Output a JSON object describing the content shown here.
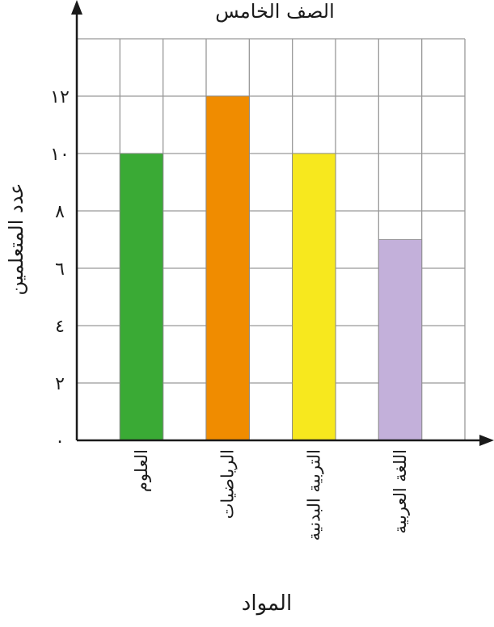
{
  "chart_data": {
    "type": "bar",
    "title": "الصف الخامس",
    "xlabel": "المواد",
    "ylabel": "عدد المتعلمين",
    "categories": [
      "العلوم",
      "الرياضيات",
      "التربية البدنية",
      "اللغة العربية"
    ],
    "values": [
      10,
      12,
      10,
      7
    ],
    "ylim": [
      0,
      14
    ],
    "yticks": [
      0,
      2,
      4,
      6,
      8,
      10,
      12
    ],
    "ytick_labels": [
      "٠",
      "٢",
      "٤",
      "٦",
      "٨",
      "١٠",
      "١٢"
    ],
    "grid": true,
    "legend": "none",
    "colors": [
      "#3aaa35",
      "#f08c00",
      "#f7e81e",
      "#c3b0da"
    ],
    "grid_color": "#999999",
    "axis_color": "#1a1a1a"
  }
}
